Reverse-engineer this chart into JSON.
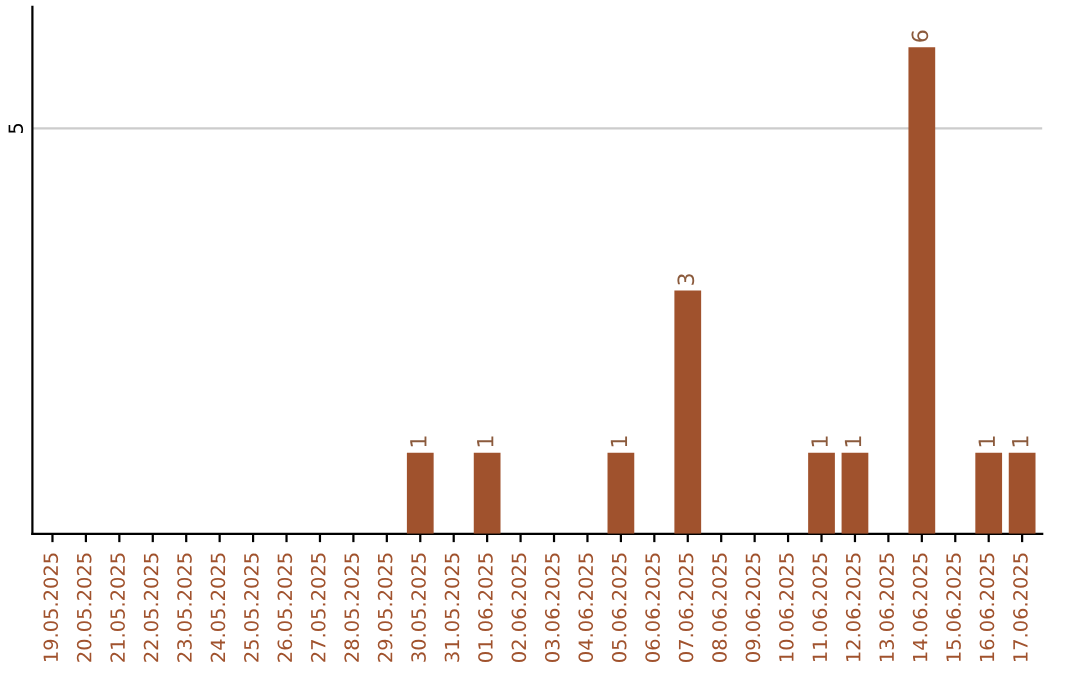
{
  "chart_data": {
    "type": "bar",
    "categories": [
      "19.05.2025",
      "20.05.2025",
      "21.05.2025",
      "22.05.2025",
      "23.05.2025",
      "24.05.2025",
      "25.05.2025",
      "26.05.2025",
      "27.05.2025",
      "28.05.2025",
      "29.05.2025",
      "30.05.2025",
      "31.05.2025",
      "01.06.2025",
      "02.06.2025",
      "03.06.2025",
      "04.06.2025",
      "05.06.2025",
      "06.06.2025",
      "07.06.2025",
      "08.06.2025",
      "09.06.2025",
      "10.06.2025",
      "11.06.2025",
      "12.06.2025",
      "13.06.2025",
      "14.06.2025",
      "15.06.2025",
      "16.06.2025",
      "17.06.2025"
    ],
    "values": [
      0,
      0,
      0,
      0,
      0,
      0,
      0,
      0,
      0,
      0,
      0,
      1,
      0,
      1,
      0,
      0,
      0,
      1,
      0,
      3,
      0,
      0,
      0,
      1,
      1,
      0,
      6,
      0,
      1,
      1
    ],
    "value_labels": [
      null,
      null,
      null,
      null,
      null,
      null,
      null,
      null,
      null,
      null,
      null,
      "1",
      null,
      "1",
      null,
      null,
      null,
      "1",
      null,
      "3",
      null,
      null,
      null,
      "1",
      "1",
      null,
      "6",
      null,
      "1",
      "1"
    ],
    "color": "#a0522d",
    "ylim": [
      0,
      6.5
    ],
    "yticks": [
      5
    ],
    "grid": "y",
    "legend": false
  }
}
